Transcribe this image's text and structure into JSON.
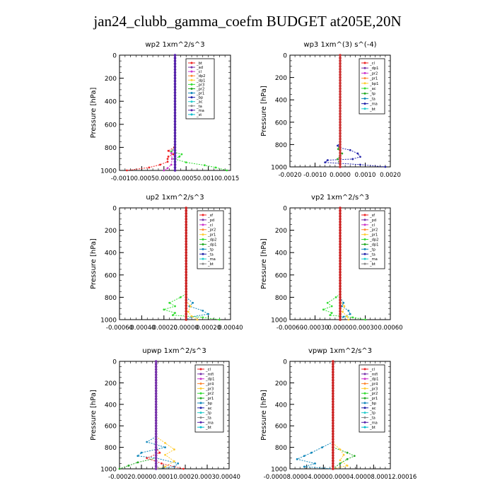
{
  "figure": {
    "title": "jan24_clubb_gamma_coefm  BUDGET at205E,20N"
  },
  "chart_data": [
    {
      "type": "line",
      "title": "wp2  1xm^2/s^3",
      "ylabel": "Pressure [hPa]",
      "ylim": [
        1000,
        0
      ],
      "xlim": [
        -0.0015,
        0.0015
      ],
      "yticks": [
        "0",
        "200",
        "400",
        "600",
        "800",
        "1000"
      ],
      "xticks": [
        "-0.0010",
        "-0.0005",
        "0.0000",
        "0.0005",
        "0.0010",
        "0.0015"
      ],
      "xticks_display": [
        "-0.00100.00050.00000.00050.00100.0015"
      ],
      "legend": [
        "_bt",
        "_ad",
        "_cl",
        "_dp2",
        "_dp1",
        "_pr3",
        "_pr2",
        "_pr1",
        "_bp",
        "_ac",
        "_ta",
        "_ma",
        "_st"
      ],
      "series": [
        {
          "name": "_bp",
          "color": "#33dd33",
          "values": [
            [
              -2e-05,
              800
            ],
            [
              -0.0001,
              835
            ],
            [
              0.00018,
              860
            ],
            [
              0.00012,
              880
            ],
            [
              -2e-05,
              900
            ],
            [
              0.0003,
              930
            ],
            [
              0.0008,
              955
            ],
            [
              0.0011,
              975
            ],
            [
              0.0014,
              1000
            ]
          ]
        },
        {
          "name": "_pr1",
          "color": "#ee2222",
          "values": [
            [
              -2e-05,
              800
            ],
            [
              -0.00018,
              830
            ],
            [
              -5e-05,
              860
            ],
            [
              -0.00018,
              880
            ],
            [
              -0.0002,
              900
            ],
            [
              -0.0002,
              925
            ],
            [
              -0.0004,
              950
            ],
            [
              -0.0007,
              975
            ],
            [
              -0.0013,
              1000
            ]
          ]
        },
        {
          "name": "_dp1",
          "color": "#cc33cc",
          "values": [
            [
              0,
              800
            ],
            [
              -0.0001,
              850
            ],
            [
              -8e-05,
              900
            ],
            [
              -0.0001,
              950
            ],
            [
              -0.0002,
              980
            ],
            [
              -0.0003,
              1000
            ]
          ]
        },
        {
          "name": "_ma",
          "color": "#5522aa",
          "values": [
            [
              0,
              0
            ],
            [
              0,
              1000
            ]
          ]
        }
      ]
    },
    {
      "type": "line",
      "title": "wp3  1xm^(3) s^(-4)",
      "ylabel": "Pressure [hPa]",
      "ylim": [
        1000,
        0
      ],
      "xlim": [
        -0.002,
        0.002
      ],
      "yticks": [
        "0",
        "200",
        "400",
        "600",
        "800",
        "1000"
      ],
      "xticks": [
        "-0.0020",
        "-0.0010",
        "0.0000",
        "0.0010",
        "0.0020"
      ],
      "legend": [
        "_cl",
        "_dp1",
        "_pr2",
        "_pr1",
        "_bp1",
        "_ac",
        "_tp",
        "_ta",
        "_ma",
        "_bt"
      ],
      "series": [
        {
          "name": "_ta",
          "color": "#2222aa",
          "values": [
            [
              0,
              780
            ],
            [
              -0.0001,
              810
            ],
            [
              0,
              830
            ],
            [
              0.0004,
              850
            ],
            [
              0.0007,
              880
            ],
            [
              0.0008,
              910
            ],
            [
              0.0005,
              930
            ],
            [
              -0.0005,
              940
            ],
            [
              -0.0006,
              960
            ],
            [
              0.0008,
              980
            ],
            [
              0.0018,
              1000
            ]
          ]
        },
        {
          "name": "_bp1",
          "color": "#33aa33",
          "values": [
            [
              0,
              780
            ],
            [
              -8e-05,
              840
            ],
            [
              8e-05,
              880
            ],
            [
              -0.0001,
              930
            ],
            [
              0,
              1000
            ]
          ]
        },
        {
          "name": "_ma",
          "color": "#cc3333",
          "values": [
            [
              0,
              0
            ],
            [
              0,
              1000
            ]
          ]
        }
      ]
    },
    {
      "type": "line",
      "title": "up2  1xm^2/s^3",
      "ylabel": "Pressure [hPa]",
      "ylim": [
        1000,
        0
      ],
      "xlim": [
        -0.0006,
        0.0004
      ],
      "yticks": [
        "0",
        "200",
        "400",
        "600",
        "800",
        "1000"
      ],
      "xticks": [
        "-0.00060",
        "-0.00040",
        "-0.00020",
        "0.00000",
        "0.00020",
        "0.00040"
      ],
      "legend": [
        "_sf",
        "_pd",
        "_cl",
        "_pr2",
        "_pr1",
        "_dp2",
        "_dp1",
        "_tp",
        "_ta",
        "_ma",
        "_bt"
      ],
      "series": [
        {
          "name": "_dp1",
          "color": "#33dd33",
          "values": [
            [
              0,
              770
            ],
            [
              -5e-05,
              800
            ],
            [
              -0.00015,
              850
            ],
            [
              -0.0001,
              880
            ],
            [
              -0.0002,
              910
            ],
            [
              -0.0001,
              940
            ],
            [
              -0.00012,
              960
            ],
            [
              0.00015,
              980
            ],
            [
              0.0003,
              1000
            ]
          ]
        },
        {
          "name": "_ta",
          "color": "#1188bb",
          "values": [
            [
              0,
              800
            ],
            [
              6e-05,
              850
            ],
            [
              3e-05,
              880
            ],
            [
              0.00015,
              920
            ],
            [
              0.0002,
              950
            ],
            [
              5e-05,
              975
            ],
            [
              0,
              1000
            ]
          ]
        },
        {
          "name": "_pr2",
          "color": "#ffcc33",
          "values": [
            [
              0,
              830
            ],
            [
              4e-05,
              880
            ],
            [
              2e-05,
              930
            ],
            [
              5e-05,
              970
            ],
            [
              0.0001,
              1000
            ]
          ]
        },
        {
          "name": "_ma",
          "color": "#cc2222",
          "values": [
            [
              0,
              0
            ],
            [
              0,
              1000
            ]
          ]
        }
      ]
    },
    {
      "type": "line",
      "title": "vp2  1xm^2/s^3",
      "ylabel": "Pressure [hPa]",
      "ylim": [
        1000,
        0
      ],
      "xlim": [
        -0.0006,
        0.0006
      ],
      "yticks": [
        "0",
        "200",
        "400",
        "600",
        "800",
        "1000"
      ],
      "xticks": [
        "-0.00060",
        "-0.00030",
        "0.00000",
        "0.00030",
        "0.00060"
      ],
      "legend": [
        "_sf",
        "_pd",
        "_cl",
        "_pr2",
        "_pr1",
        "_dp2",
        "_dp1",
        "_tp",
        "_ta",
        "_ma",
        "_bt"
      ],
      "series": [
        {
          "name": "_dp1",
          "color": "#33dd33",
          "values": [
            [
              0,
              770
            ],
            [
              -5e-05,
              800
            ],
            [
              -0.00015,
              850
            ],
            [
              -0.0001,
              880
            ],
            [
              -0.0002,
              910
            ],
            [
              -0.0001,
              940
            ],
            [
              -0.00012,
              960
            ],
            [
              0.00015,
              980
            ],
            [
              0.0003,
              1000
            ]
          ]
        },
        {
          "name": "_ta",
          "color": "#1188bb",
          "values": [
            [
              0,
              800
            ],
            [
              4e-05,
              850
            ],
            [
              2e-05,
              880
            ],
            [
              0.0001,
              920
            ],
            [
              0.00012,
              950
            ],
            [
              4e-05,
              975
            ],
            [
              0,
              1000
            ]
          ]
        },
        {
          "name": "_pr2",
          "color": "#ffcc33",
          "values": [
            [
              0,
              830
            ],
            [
              5e-05,
              880
            ],
            [
              3e-05,
              930
            ],
            [
              8e-05,
              970
            ],
            [
              0.0001,
              1000
            ]
          ]
        },
        {
          "name": "_ma",
          "color": "#cc2222",
          "values": [
            [
              0,
              0
            ],
            [
              0,
              1000
            ]
          ]
        }
      ]
    },
    {
      "type": "line",
      "title": "upwp  1xm^2/s^3",
      "ylabel": "Pressure [hPa]",
      "ylim": [
        1000,
        0
      ],
      "xlim": [
        -0.0002,
        0.0004
      ],
      "yticks": [
        "0",
        "200",
        "400",
        "600",
        "800",
        "1000"
      ],
      "xticks": [
        "-0.00020",
        "0.00000",
        "0.00010",
        "0.00020",
        "0.00030",
        "0.00040"
      ],
      "xticks_display": [
        "-0.00020.00000.00010.00020.00030.00040"
      ],
      "legend": [
        "_cl",
        "_mfl",
        "_dp1",
        "_pr4",
        "_pr3",
        "_pr2",
        "_pr1",
        "_bp",
        "_ac",
        "_tp",
        "_ta",
        "_ma",
        "_bt"
      ],
      "series": [
        {
          "name": "_ta",
          "color": "#1188bb",
          "values": [
            [
              0,
              700
            ],
            [
              -5e-05,
              750
            ],
            [
              5e-05,
              800
            ],
            [
              -8e-05,
              850
            ],
            [
              -0.0001,
              880
            ],
            [
              0,
              900
            ],
            [
              0.00012,
              950
            ],
            [
              0.0001,
              980
            ],
            [
              0,
              1000
            ]
          ]
        },
        {
          "name": "_pr2",
          "color": "#ffcc33",
          "values": [
            [
              0,
              700
            ],
            [
              5e-05,
              760
            ],
            [
              0.0001,
              820
            ],
            [
              5e-05,
              870
            ],
            [
              0.0001,
              930
            ],
            [
              5e-05,
              980
            ],
            [
              0,
              1000
            ]
          ]
        },
        {
          "name": "_bp",
          "color": "#22aa22",
          "values": [
            [
              0,
              900
            ],
            [
              -0.0001,
              940
            ],
            [
              -0.00015,
              970
            ],
            [
              -0.0002,
              1000
            ]
          ]
        },
        {
          "name": "_pr1",
          "color": "#ee2222",
          "values": [
            [
              0,
              800
            ],
            [
              2e-05,
              850
            ],
            [
              -5e-05,
              900
            ],
            [
              3e-05,
              950
            ],
            [
              0.00015,
              1000
            ]
          ]
        },
        {
          "name": "_ma",
          "color": "#7733aa",
          "values": [
            [
              0,
              0
            ],
            [
              0,
              1000
            ]
          ]
        }
      ]
    },
    {
      "type": "line",
      "title": "vpwp  1xm^2/s^3",
      "ylabel": "Pressure [hPa]",
      "ylim": [
        1000,
        0
      ],
      "xlim": [
        -0.00012,
        0.00016
      ],
      "yticks": [
        "0",
        "200",
        "400",
        "600",
        "800",
        "1000"
      ],
      "xticks": [
        "-0.00008",
        "-0.00004",
        "0.00000",
        "0.00004",
        "0.00008",
        "0.00012",
        "0.00016"
      ],
      "xticks_display": [
        "-0.00008.00004.00000.00004.00008.00012.00016"
      ],
      "legend": [
        "_cl",
        "_mfl",
        "_dp1",
        "_pr4",
        "_pr3",
        "_pr2",
        "_pr1",
        "_bp",
        "_ac",
        "_tp",
        "_ta",
        "_ma",
        "_bt"
      ],
      "series": [
        {
          "name": "_ta",
          "color": "#1188bb",
          "values": [
            [
              0,
              750
            ],
            [
              -3e-05,
              800
            ],
            [
              -6e-05,
              850
            ],
            [
              -8e-05,
              880
            ],
            [
              -0.0001,
              910
            ],
            [
              -5e-05,
              950
            ],
            [
              -8e-05,
              980
            ],
            [
              0,
              1000
            ]
          ]
        },
        {
          "name": "_bp",
          "color": "#22aa22",
          "values": [
            [
              0,
              800
            ],
            [
              4e-05,
              850
            ],
            [
              6e-05,
              880
            ],
            [
              4e-05,
              910
            ],
            [
              2e-05,
              950
            ],
            [
              0,
              1000
            ]
          ]
        },
        {
          "name": "_pr2",
          "color": "#ffcc33",
          "values": [
            [
              0,
              760
            ],
            [
              2e-05,
              820
            ],
            [
              3e-05,
              870
            ],
            [
              2e-05,
              920
            ],
            [
              4e-05,
              970
            ],
            [
              0,
              1000
            ]
          ]
        },
        {
          "name": "_ma",
          "color": "#cc2222",
          "values": [
            [
              0,
              0
            ],
            [
              0,
              1000
            ]
          ]
        }
      ]
    }
  ]
}
